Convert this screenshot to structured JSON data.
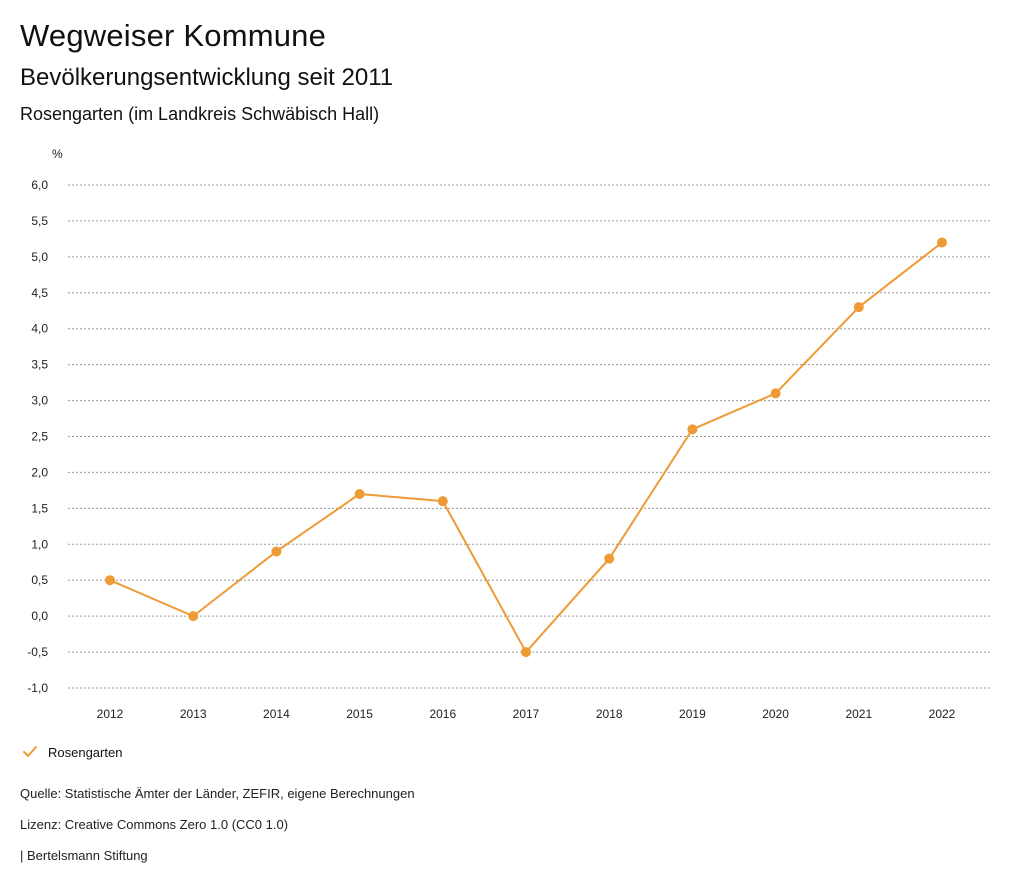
{
  "header": {
    "title": "Wegweiser Kommune",
    "subtitle": "Bevölkerungsentwicklung seit 2011",
    "region": "Rosengarten (im Landkreis Schwäbisch Hall)"
  },
  "chart_data": {
    "type": "line",
    "title": "Bevölkerungsentwicklung seit 2011",
    "ylabel": "%",
    "xlabel": "",
    "ylim": [
      -1.0,
      6.0
    ],
    "y_ticks": [
      -1.0,
      -0.5,
      0.0,
      0.5,
      1.0,
      1.5,
      2.0,
      2.5,
      3.0,
      3.5,
      4.0,
      4.5,
      5.0,
      5.5,
      6.0
    ],
    "y_tick_labels": [
      "-1,0",
      "-0,5",
      "0,0",
      "0,5",
      "1,0",
      "1,5",
      "2,0",
      "2,5",
      "3,0",
      "3,5",
      "4,0",
      "4,5",
      "5,0",
      "5,5",
      "6,0"
    ],
    "categories": [
      "2012",
      "2013",
      "2014",
      "2015",
      "2016",
      "2017",
      "2018",
      "2019",
      "2020",
      "2021",
      "2022"
    ],
    "series": [
      {
        "name": "Rosengarten",
        "color": "#ee9a35",
        "values": [
          0.5,
          0.0,
          0.9,
          1.7,
          1.6,
          -0.5,
          0.8,
          2.6,
          3.1,
          4.3,
          5.2
        ]
      }
    ],
    "grid": true,
    "legend": "bottom-left"
  },
  "footer": {
    "source": "Quelle: Statistische Ämter der Länder, ZEFIR, eigene Berechnungen",
    "license": "Lizenz: Creative Commons Zero 1.0 (CC0 1.0)",
    "publisher": "| Bertelsmann Stiftung"
  }
}
